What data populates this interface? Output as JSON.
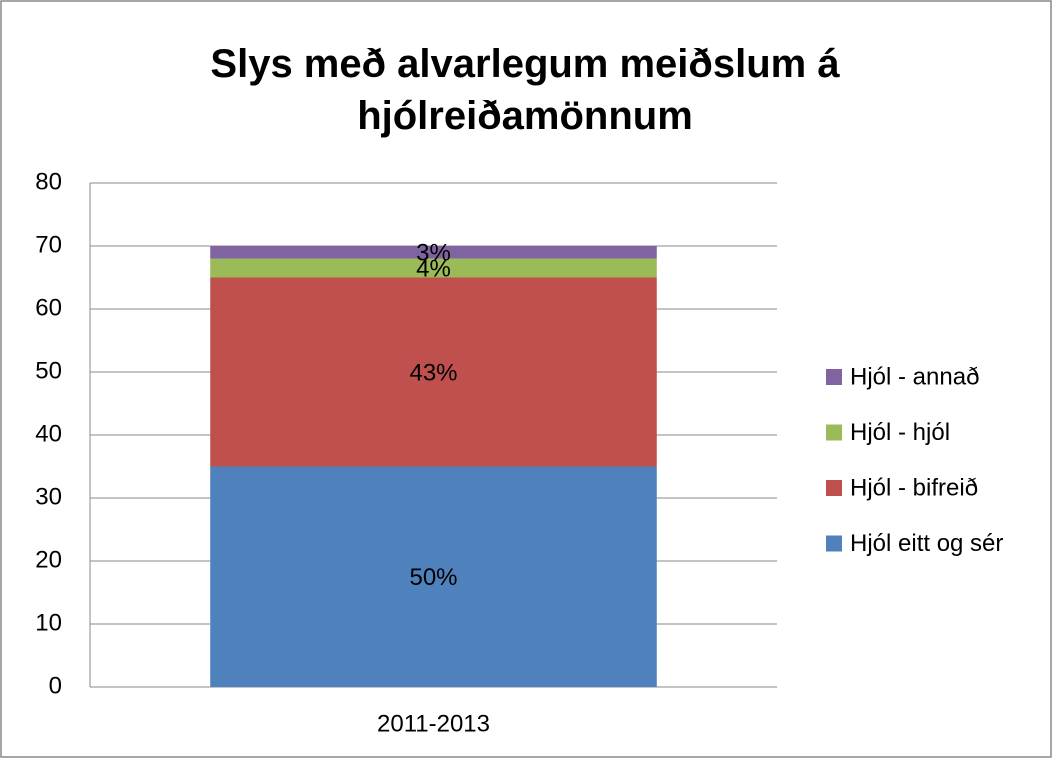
{
  "chart_data": {
    "type": "stacked_bar",
    "title": "Slys með alvarlegum meiðslum á hjólreiðamönnum",
    "categories": [
      "2011-2013"
    ],
    "series": [
      {
        "name": "Hjól eitt og sér",
        "color": "#4f81bd",
        "values": [
          35
        ],
        "value_labels": [
          "50%"
        ]
      },
      {
        "name": "Hjól - bifreið",
        "color": "#c0504d",
        "values": [
          30
        ],
        "value_labels": [
          "43%"
        ]
      },
      {
        "name": "Hjól - hjól",
        "color": "#9bbb59",
        "values": [
          3
        ],
        "value_labels": [
          "4%"
        ]
      },
      {
        "name": "Hjól - annað",
        "color": "#8064a2",
        "values": [
          2
        ],
        "value_labels": [
          "3%"
        ]
      }
    ],
    "ylim": [
      0,
      80
    ],
    "yticks": [
      0,
      10,
      20,
      30,
      40,
      50,
      60,
      70,
      80
    ],
    "grid": true,
    "legend": "right"
  }
}
